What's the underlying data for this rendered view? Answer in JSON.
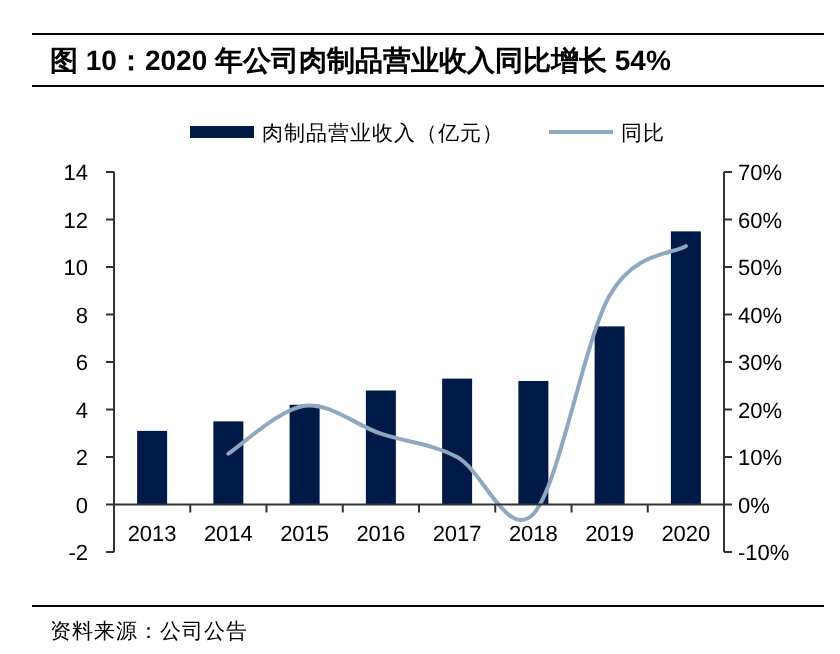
{
  "chart_data": {
    "type": "bar",
    "title": "图 10：2020 年公司肉制品营业收入同比增长 54%",
    "categories": [
      "2013",
      "2014",
      "2015",
      "2016",
      "2017",
      "2018",
      "2019",
      "2020"
    ],
    "series": [
      {
        "name": "肉制品营业收入（亿元）",
        "color": "#001a47",
        "values": [
          3.1,
          3.5,
          4.2,
          4.8,
          5.3,
          5.2,
          7.5,
          11.5
        ]
      },
      {
        "name": "同比",
        "type": "line",
        "axis": "y2",
        "color": "#8fa8c0",
        "values": [
          null,
          10.7,
          20.8,
          14.9,
          10,
          -2,
          44,
          54.4
        ]
      }
    ],
    "ylim": [
      -2,
      14
    ],
    "yticks": [
      -2,
      0,
      2,
      4,
      6,
      8,
      10,
      12,
      14
    ],
    "y2lim": [
      -10,
      70
    ],
    "y2ticks": [
      {
        "value": -10,
        "label": "-10%"
      },
      {
        "value": 0,
        "label": "0%"
      },
      {
        "value": 10,
        "label": "10%"
      },
      {
        "value": 20,
        "label": "20%"
      },
      {
        "value": 30,
        "label": "30%"
      },
      {
        "value": 40,
        "label": "40%"
      },
      {
        "value": 50,
        "label": "50%"
      },
      {
        "value": 60,
        "label": "60%"
      },
      {
        "value": 70,
        "label": "70%"
      }
    ],
    "legend": "top",
    "annotations": [
      "资料来源：公司公告"
    ]
  }
}
